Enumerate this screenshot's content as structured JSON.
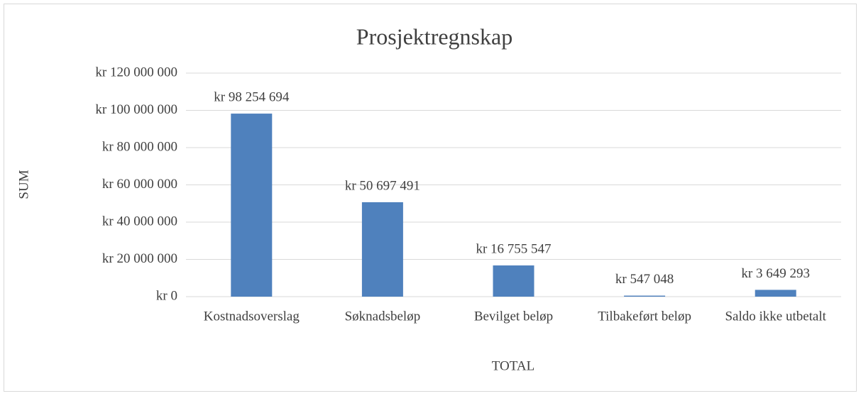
{
  "chart_data": {
    "type": "bar",
    "title": "Prosjektregnskap",
    "x_label": "TOTAL",
    "y_label": "SUM",
    "categories": [
      "Kostnadsoverslag",
      "Søknadsbeløp",
      "Bevilget beløp",
      "Tilbakeført beløp",
      "Saldo ikke utbetalt"
    ],
    "values": [
      98254694,
      50697491,
      16755547,
      547048,
      3649293
    ],
    "value_labels": [
      "kr 98 254 694",
      "kr 50 697 491",
      "kr 16 755 547",
      "kr 547 048",
      "kr 3 649 293"
    ],
    "color": "#4f81bd",
    "ylim": [
      0,
      120000000
    ],
    "yticks": [
      {
        "value": 0,
        "label": "kr 0"
      },
      {
        "value": 20000000,
        "label": "kr 20 000 000"
      },
      {
        "value": 40000000,
        "label": "kr 40 000 000"
      },
      {
        "value": 60000000,
        "label": "kr 60 000 000"
      },
      {
        "value": 80000000,
        "label": "kr 80 000 000"
      },
      {
        "value": 100000000,
        "label": "kr 100 000 000"
      },
      {
        "value": 120000000,
        "label": "kr 120 000 000"
      }
    ],
    "grid": true
  }
}
